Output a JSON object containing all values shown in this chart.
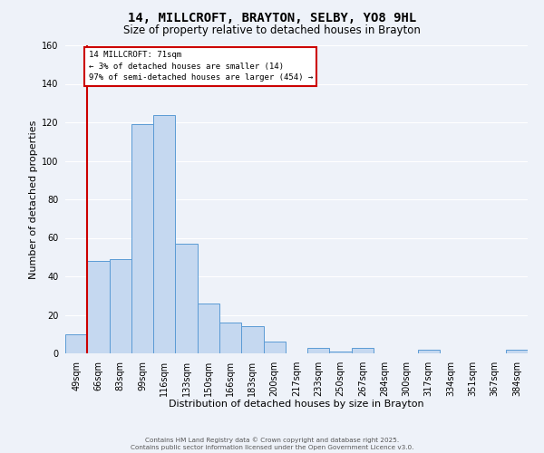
{
  "title": "14, MILLCROFT, BRAYTON, SELBY, YO8 9HL",
  "subtitle": "Size of property relative to detached houses in Brayton",
  "xlabel": "Distribution of detached houses by size in Brayton",
  "ylabel": "Number of detached properties",
  "bin_labels": [
    "49sqm",
    "66sqm",
    "83sqm",
    "99sqm",
    "116sqm",
    "133sqm",
    "150sqm",
    "166sqm",
    "183sqm",
    "200sqm",
    "217sqm",
    "233sqm",
    "250sqm",
    "267sqm",
    "284sqm",
    "300sqm",
    "317sqm",
    "334sqm",
    "351sqm",
    "367sqm",
    "384sqm"
  ],
  "bar_values": [
    10,
    48,
    49,
    119,
    124,
    57,
    26,
    16,
    14,
    6,
    0,
    3,
    1,
    3,
    0,
    0,
    2,
    0,
    0,
    0,
    2
  ],
  "bar_color": "#c5d8f0",
  "bar_edge_color": "#5b9bd5",
  "vline_color": "#cc0000",
  "ylim": [
    0,
    160
  ],
  "yticks": [
    0,
    20,
    40,
    60,
    80,
    100,
    120,
    140,
    160
  ],
  "annotation_title": "14 MILLCROFT: 71sqm",
  "annotation_line1": "← 3% of detached houses are smaller (14)",
  "annotation_line2": "97% of semi-detached houses are larger (454) →",
  "annotation_box_color": "#cc0000",
  "footer1": "Contains HM Land Registry data © Crown copyright and database right 2025.",
  "footer2": "Contains public sector information licensed under the Open Government Licence v3.0.",
  "background_color": "#eef2f9",
  "plot_background": "#eef2f9",
  "grid_color": "#ffffff",
  "title_fontsize": 10,
  "subtitle_fontsize": 8.5,
  "axis_label_fontsize": 8,
  "tick_fontsize": 7
}
